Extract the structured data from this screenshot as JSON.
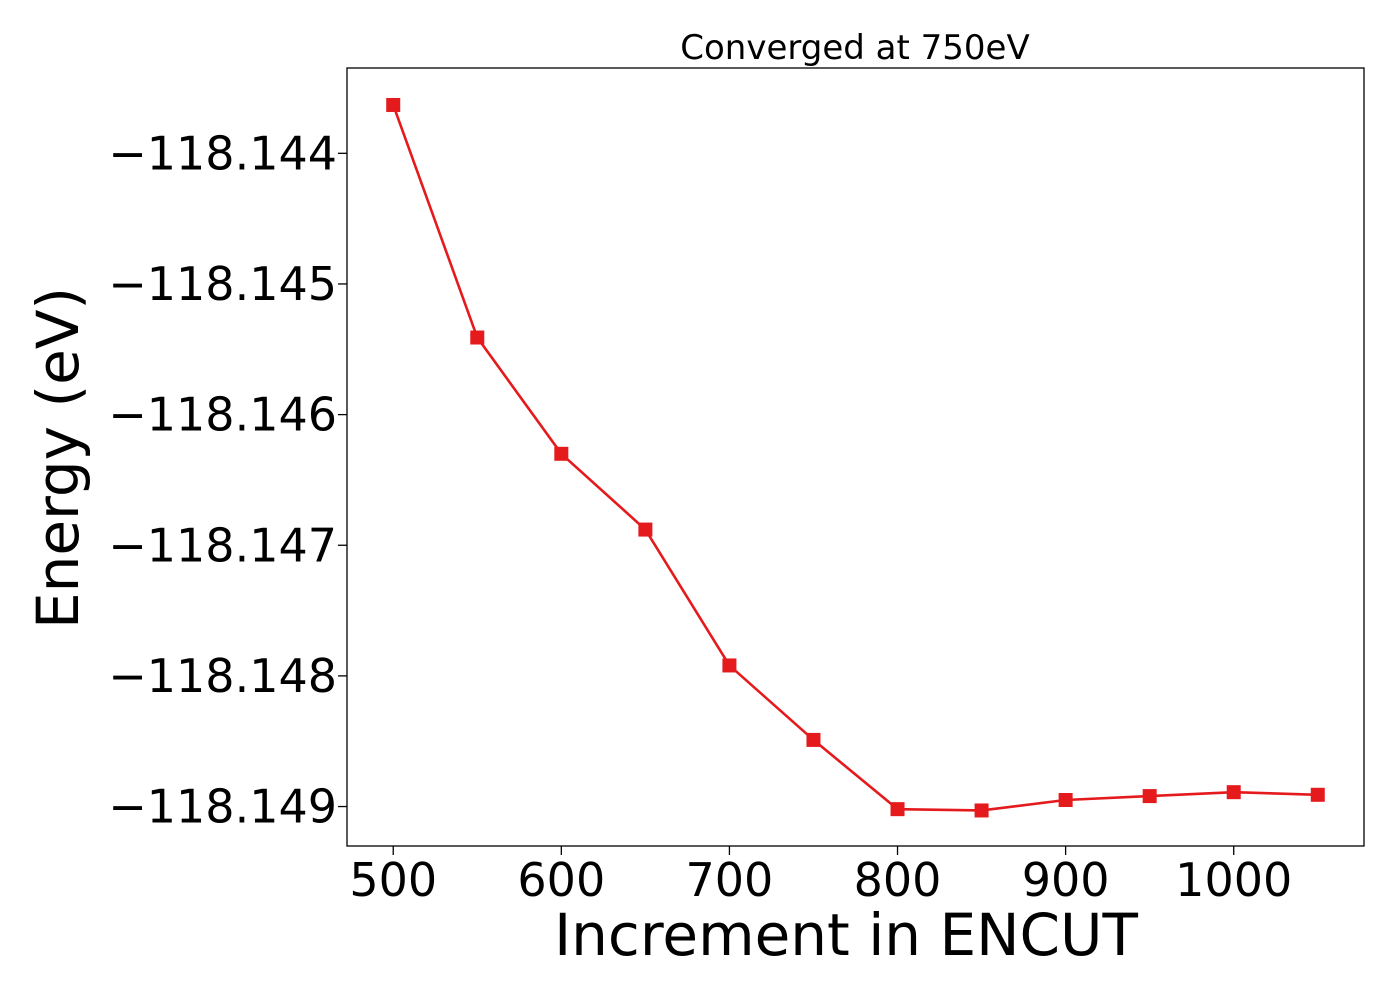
{
  "chart_data": {
    "type": "line",
    "title": "Converged at 750eV",
    "xlabel": "Increment in ENCUT",
    "ylabel": "Energy (eV)",
    "x": [
      500,
      550,
      600,
      650,
      700,
      750,
      800,
      850,
      900,
      950,
      1000,
      1050
    ],
    "series": [
      {
        "values": [
          -118.14363,
          -118.14541,
          -118.1463,
          -118.14688,
          -118.14792,
          -118.14849,
          -118.14902,
          -118.14903,
          -118.14895,
          -118.14892,
          -118.14889,
          -118.14891
        ],
        "color": "#e41a1c",
        "marker": "square"
      }
    ],
    "xlim": [
      472.5,
      1077.5
    ],
    "ylim": [
      -118.149302,
      -118.143347
    ],
    "xticks": [
      500,
      600,
      700,
      800,
      900,
      1000
    ],
    "xtick_labels": [
      "500",
      "600",
      "700",
      "800",
      "900",
      "1000"
    ],
    "yticks": [
      -118.144,
      -118.145,
      -118.146,
      -118.147,
      -118.148,
      -118.149
    ],
    "ytick_labels": [
      "−118.144",
      "−118.145",
      "−118.146",
      "−118.147",
      "−118.148",
      "−118.149"
    ],
    "grid": false,
    "legend": "none"
  }
}
